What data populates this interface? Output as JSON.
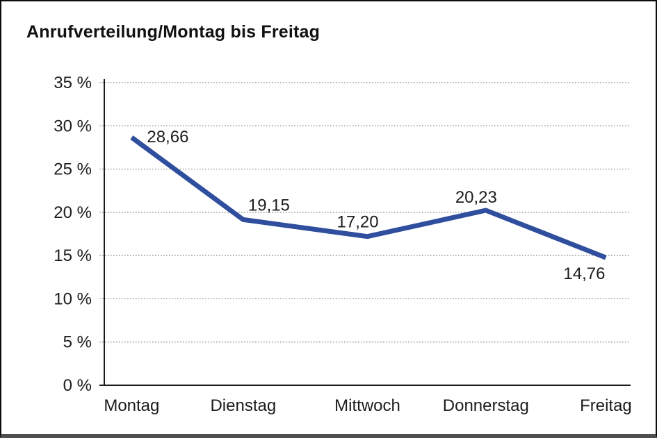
{
  "chart_data": {
    "type": "line",
    "title": "Anrufverteilung/Montag bis Freitag",
    "categories": [
      "Montag",
      "Dienstag",
      "Mittwoch",
      "Donnerstag",
      "Freitag"
    ],
    "values": [
      28.66,
      19.15,
      17.2,
      20.23,
      14.76
    ],
    "data_labels": [
      "28,66",
      "19,15",
      "17,20",
      "20,23",
      "14,76"
    ],
    "xlabel": "",
    "ylabel": "",
    "ylim": [
      0,
      35
    ],
    "y_tick_step": 5,
    "y_tick_labels": [
      "0 %",
      "5 %",
      "10 %",
      "15 %",
      "20 %",
      "25 %",
      "30 %",
      "35 %"
    ],
    "grid": "horizontal-dotted",
    "legend": "none",
    "line_color": "#2f4f9e",
    "axis_color": "#1a1a1a",
    "gridline_color": "#828282",
    "text_color": "#1c1c1c"
  }
}
